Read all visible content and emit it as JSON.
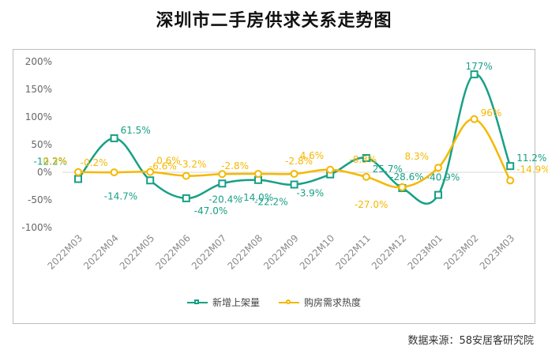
{
  "title": "深圳市二手房供求关系走势图",
  "source": "数据来源：58安居客研究院",
  "chart_data": {
    "type": "line",
    "title": "深圳市二手房供求关系走势图",
    "categories": [
      "2022M03",
      "2022M04",
      "2022M05",
      "2022M06",
      "2022M07",
      "2022M08",
      "2022M09",
      "2022M10",
      "2022M11",
      "2022M12",
      "2023M01",
      "2023M02",
      "2023M03"
    ],
    "ylim": [
      -100,
      200
    ],
    "yticks": [
      -100,
      -50,
      0,
      50,
      100,
      150,
      200
    ],
    "ytick_labels": [
      "-100%",
      "-50%",
      "0%",
      "50%",
      "100%",
      "150%",
      "200%"
    ],
    "grid": false,
    "legend_position": "bottom",
    "series": [
      {
        "name": "新增上架量",
        "color": "#17a085",
        "marker": "square",
        "values": [
          -12.2,
          61.5,
          -14.7,
          -47.0,
          -20.4,
          -14.0,
          -22.2,
          -3.9,
          25.7,
          -28.6,
          -40.9,
          177,
          11.2
        ],
        "labels": [
          "-12.2%",
          "61.5%",
          "-14.7%",
          "-47.0%",
          "-20.4%",
          "-14.0%",
          "-22.2%",
          "-3.9%",
          "25.7%",
          "-28.6%",
          "-40.9%",
          "177%",
          "11.2%"
        ]
      },
      {
        "name": "购房需求热度",
        "color": "#f5b800",
        "marker": "circle",
        "values": [
          0.3,
          -0.2,
          0.6,
          -6.6,
          -3.2,
          -2.8,
          -2.8,
          4.6,
          -8.3,
          -27.0,
          8.3,
          96,
          -14.9
        ],
        "labels": [
          "0.3%",
          "-0.2%",
          "0.6%",
          "-6.6%",
          "-3.2%",
          "-2.8%",
          "-2.8%",
          "4.6%",
          "-8.3%",
          "-27.0%",
          "8.3%",
          "96%",
          "-14.9%"
        ]
      }
    ]
  }
}
